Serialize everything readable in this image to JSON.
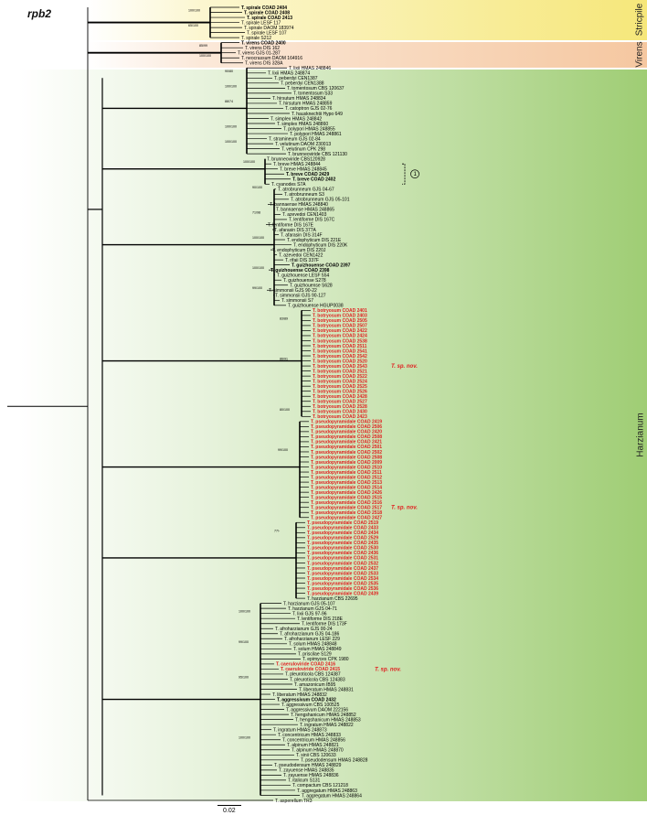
{
  "figure": {
    "gene": "rpb2",
    "scale_label": "0.02",
    "note_marker": "1",
    "colors": {
      "stricpile": "#f6e77a",
      "virens": "#f5c7a0",
      "harzianum": "#9fcd74",
      "highlight": "#e02020",
      "normal": "#000000",
      "branch": "#000000"
    },
    "clades": [
      {
        "name": "Stricpile"
      },
      {
        "name": "Virens"
      },
      {
        "name": "Harzianum"
      }
    ],
    "sp_nov": [
      "T. sp. nov.",
      "T. sp. nov.",
      "T. sp. nov."
    ],
    "support_values": [
      "100/100",
      "65/100",
      "85/99",
      "100/100",
      "90/80",
      "100/100",
      "88/74",
      "100/100",
      "100/100",
      "100/100",
      "90/100",
      "71/98",
      "100/100",
      "100/100",
      "99/100",
      "83/89",
      "86/91",
      "80/100",
      "99/100",
      "77/-",
      "100/100",
      "99/100",
      "95/100",
      "100/100"
    ],
    "tips": [
      {
        "label": "T. spirale COAD 2404",
        "style": "bold",
        "color": "normal"
      },
      {
        "label": "T. spirale COAD 2408",
        "style": "bold",
        "color": "normal"
      },
      {
        "label": "T. spirale COAD 2413",
        "style": "bold",
        "color": "normal"
      },
      {
        "label": "T. spirale LESF 117",
        "style": "normal",
        "color": "normal"
      },
      {
        "label": "T. spirale DAOM 183974",
        "style": "normal",
        "color": "normal"
      },
      {
        "label": "T. spirale LESF 107",
        "style": "normal",
        "color": "normal"
      },
      {
        "label": "T. spirale S212",
        "style": "normal",
        "color": "normal"
      },
      {
        "label": "T. virens COAD 2400",
        "style": "bold",
        "color": "normal"
      },
      {
        "label": "T. virens DIS 162",
        "style": "normal",
        "color": "normal"
      },
      {
        "label": "T. virens GJS 01-287",
        "style": "normal",
        "color": "normal"
      },
      {
        "label": "T. neocrassum DAOM 164916",
        "style": "normal",
        "color": "normal"
      },
      {
        "label": "T. virens DIS 328A",
        "style": "normal",
        "color": "normal"
      },
      {
        "label": "T. lixii HMAS 248846",
        "style": "normal",
        "color": "normal"
      },
      {
        "label": "T. lixii HMAS 248874",
        "style": "normal",
        "color": "normal"
      },
      {
        "label": "T. peberdyi CEN1387",
        "style": "normal",
        "color": "normal"
      },
      {
        "label": "T. peberdyi CEN1388",
        "style": "normal",
        "color": "normal"
      },
      {
        "label": "T. tomentosum CBS 120637",
        "style": "normal",
        "color": "normal"
      },
      {
        "label": "T. tomentosum S33",
        "style": "normal",
        "color": "normal"
      },
      {
        "label": "T. hirsutum HMAS 248834",
        "style": "normal",
        "color": "normal"
      },
      {
        "label": "T. hirsutum HMAS 248859",
        "style": "normal",
        "color": "normal"
      },
      {
        "label": "T. catoptron GJS 02-76",
        "style": "normal",
        "color": "normal"
      },
      {
        "label": "T. hausknechtii Hypo 649",
        "style": "normal",
        "color": "normal"
      },
      {
        "label": "T. simplex HMAS 248842",
        "style": "normal",
        "color": "normal"
      },
      {
        "label": "T. simplex HMAS 248860",
        "style": "normal",
        "color": "normal"
      },
      {
        "label": "T. polypori HMAS 248855",
        "style": "normal",
        "color": "normal"
      },
      {
        "label": "T. polypori HMAS 248861",
        "style": "normal",
        "color": "normal"
      },
      {
        "label": "T. stramineum GJS 02-84",
        "style": "normal",
        "color": "normal"
      },
      {
        "label": "T. velutinum DAOM 230013",
        "style": "normal",
        "color": "normal"
      },
      {
        "label": "T. velutinum CPK 298",
        "style": "normal",
        "color": "normal"
      },
      {
        "label": "T. brunneoviride CBS 121130",
        "style": "normal",
        "color": "normal"
      },
      {
        "label": "T. brunneoviride CBS120928",
        "style": "normal",
        "color": "normal"
      },
      {
        "label": "T. breve HMAS 248844",
        "style": "normal",
        "color": "normal"
      },
      {
        "label": "T. breve HMAS 248845",
        "style": "normal",
        "color": "normal"
      },
      {
        "label": "T. breve COAD 2429",
        "style": "bold",
        "color": "normal"
      },
      {
        "label": "T. breve COAD 2402",
        "style": "bold",
        "color": "normal"
      },
      {
        "label": "T. cyanodes S7A",
        "style": "normal",
        "color": "normal"
      },
      {
        "label": "T. atrobrunneum GJS 04-67",
        "style": "normal",
        "color": "normal"
      },
      {
        "label": "T. atrobrunneum S3",
        "style": "normal",
        "color": "normal"
      },
      {
        "label": "T. atrobrunneum GJS 05-101",
        "style": "normal",
        "color": "normal"
      },
      {
        "label": "T. bannaense HMAS 248840",
        "style": "normal",
        "color": "normal"
      },
      {
        "label": "T. bannaense HMAS 248865",
        "style": "normal",
        "color": "normal"
      },
      {
        "label": "T. azevedoi CEN1403",
        "style": "normal",
        "color": "normal"
      },
      {
        "label": "T. lentiforme DIS 167C",
        "style": "normal",
        "color": "normal"
      },
      {
        "label": "T. lentiforme DIS 167E",
        "style": "normal",
        "color": "normal"
      },
      {
        "label": "T. afarasin DIS 377A",
        "style": "normal",
        "color": "normal"
      },
      {
        "label": "T. afarasin DIS 314F",
        "style": "normal",
        "color": "normal"
      },
      {
        "label": "T. endophyticum DIS 221E",
        "style": "normal",
        "color": "normal"
      },
      {
        "label": "T. endophyticum DIS 220K",
        "style": "normal",
        "color": "normal"
      },
      {
        "label": "T. endophyticum DIS 220J",
        "style": "normal",
        "color": "normal"
      },
      {
        "label": "T. azevedoi CEN1422",
        "style": "normal",
        "color": "normal"
      },
      {
        "label": "T. rifaii DIS 337F",
        "style": "normal",
        "color": "normal"
      },
      {
        "label": "T. guizhouense COAD 2397",
        "style": "bold",
        "color": "normal"
      },
      {
        "label": "T. guizhouense COAD 2398",
        "style": "bold",
        "color": "normal"
      },
      {
        "label": "T. guizhouense LESF 554",
        "style": "normal",
        "color": "normal"
      },
      {
        "label": "T. guizhouense S278",
        "style": "normal",
        "color": "normal"
      },
      {
        "label": "T. guizhouense S628",
        "style": "normal",
        "color": "normal"
      },
      {
        "label": "T. simmonsii GJS 90-22",
        "style": "normal",
        "color": "normal"
      },
      {
        "label": "T. simmonsii GJS 90-127",
        "style": "normal",
        "color": "normal"
      },
      {
        "label": "T. simmonsii S7",
        "style": "normal",
        "color": "normal"
      },
      {
        "label": "T. guizhouense HGUP0038",
        "style": "normal",
        "color": "normal"
      },
      {
        "label": "T. botryosum COAD 2401",
        "style": "bold",
        "color": "highlight"
      },
      {
        "label": "T. botryosum COAD 2403",
        "style": "bold",
        "color": "highlight"
      },
      {
        "label": "T. botryosum COAD 2505",
        "style": "bold",
        "color": "highlight"
      },
      {
        "label": "T. botryosum COAD 2507",
        "style": "bold",
        "color": "highlight"
      },
      {
        "label": "T. botryosum COAD 2422",
        "style": "bold",
        "color": "highlight"
      },
      {
        "label": "T. botryosum COAD 2424",
        "style": "bold",
        "color": "highlight"
      },
      {
        "label": "T. botryosum COAD 2538",
        "style": "bold",
        "color": "highlight"
      },
      {
        "label": "T. botryosum COAD 2511",
        "style": "bold",
        "color": "highlight"
      },
      {
        "label": "T. botryosum COAD 2541",
        "style": "bold",
        "color": "highlight"
      },
      {
        "label": "T. botryosum COAD 2542",
        "style": "bold",
        "color": "highlight"
      },
      {
        "label": "T. botryosum COAD 2520",
        "style": "bold",
        "color": "highlight"
      },
      {
        "label": "T. botryosum COAD 2543",
        "style": "bold",
        "color": "highlight"
      },
      {
        "label": "T. botryosum COAD 2521",
        "style": "bold",
        "color": "highlight"
      },
      {
        "label": "T. botryosum COAD 2522",
        "style": "bold",
        "color": "highlight"
      },
      {
        "label": "T. botryosum COAD 2524",
        "style": "bold",
        "color": "highlight"
      },
      {
        "label": "T. botryosum COAD 2525",
        "style": "bold",
        "color": "highlight"
      },
      {
        "label": "T. botryosum COAD 2526",
        "style": "bold",
        "color": "highlight"
      },
      {
        "label": "T. botryosum COAD 2428",
        "style": "bold",
        "color": "highlight"
      },
      {
        "label": "T. botryosum COAD 2527",
        "style": "bold",
        "color": "highlight"
      },
      {
        "label": "T. botryosum COAD 2528",
        "style": "bold",
        "color": "highlight"
      },
      {
        "label": "T. botryosum COAD 2430",
        "style": "bold",
        "color": "highlight"
      },
      {
        "label": "T. botryosum COAD 2423",
        "style": "bold",
        "color": "highlight"
      },
      {
        "label": "T. pseudopyramidale COAD 2419",
        "style": "bold",
        "color": "highlight"
      },
      {
        "label": "T. pseudopyramidale COAD 2506",
        "style": "bold",
        "color": "highlight"
      },
      {
        "label": "T. pseudopyramidale COAD 2420",
        "style": "bold",
        "color": "highlight"
      },
      {
        "label": "T. pseudopyramidale COAD 2508",
        "style": "bold",
        "color": "highlight"
      },
      {
        "label": "T. pseudopyramidale COAD 2421",
        "style": "bold",
        "color": "highlight"
      },
      {
        "label": "T. pseudopyramidale COAD 2501",
        "style": "bold",
        "color": "highlight"
      },
      {
        "label": "T. pseudopyramidale COAD 2502",
        "style": "bold",
        "color": "highlight"
      },
      {
        "label": "T. pseudopyramidale COAD 2508",
        "style": "bold",
        "color": "highlight"
      },
      {
        "label": "T. pseudopyramidale COAD 2009",
        "style": "bold",
        "color": "highlight"
      },
      {
        "label": "T. pseudopyramidale COAD 2510",
        "style": "bold",
        "color": "highlight"
      },
      {
        "label": "T. pseudopyramidale COAD 2511",
        "style": "bold",
        "color": "highlight"
      },
      {
        "label": "T. pseudopyramidale COAD 2512",
        "style": "bold",
        "color": "highlight"
      },
      {
        "label": "T. pseudopyramidale COAD 2513",
        "style": "bold",
        "color": "highlight"
      },
      {
        "label": "T. pseudopyramidale COAD 2514",
        "style": "bold",
        "color": "highlight"
      },
      {
        "label": "T. pseudopyramidale COAD 2426",
        "style": "bold",
        "color": "highlight"
      },
      {
        "label": "T. pseudopyramidale COAD 2515",
        "style": "bold",
        "color": "highlight"
      },
      {
        "label": "T. pseudopyramidale COAD 2516",
        "style": "bold",
        "color": "highlight"
      },
      {
        "label": "T. pseudopyramidale COAD 2517",
        "style": "bold",
        "color": "highlight"
      },
      {
        "label": "T. pseudopyramidale COAD 2518",
        "style": "bold",
        "color": "highlight"
      },
      {
        "label": "T. pseudopyramidale COAD 2427",
        "style": "bold",
        "color": "highlight"
      },
      {
        "label": "T. pseudopyramidale COAD 2519",
        "style": "bold",
        "color": "highlight"
      },
      {
        "label": "T. pseudopyramidale COAD 2433",
        "style": "bold",
        "color": "highlight"
      },
      {
        "label": "T. pseudopyramidale COAD 2434",
        "style": "bold",
        "color": "highlight"
      },
      {
        "label": "T. pseudopyramidale COAD 2529",
        "style": "bold",
        "color": "highlight"
      },
      {
        "label": "T. pseudopyramidale COAD 2435",
        "style": "bold",
        "color": "highlight"
      },
      {
        "label": "T. pseudopyramidale COAD 2530",
        "style": "bold",
        "color": "highlight"
      },
      {
        "label": "T. pseudopyramidale COAD 2436",
        "style": "bold",
        "color": "highlight"
      },
      {
        "label": "T. pseudopyramidale COAD 2531",
        "style": "bold",
        "color": "highlight"
      },
      {
        "label": "T. pseudopyramidale COAD 2532",
        "style": "bold",
        "color": "highlight"
      },
      {
        "label": "T. pseudopyramidale COAD 2437",
        "style": "bold",
        "color": "highlight"
      },
      {
        "label": "T. pseudopyramidale COAD 2533",
        "style": "bold",
        "color": "highlight"
      },
      {
        "label": "T. pseudopyramidale COAD 2534",
        "style": "bold",
        "color": "highlight"
      },
      {
        "label": "T. pseudopyramidale COAD 2535",
        "style": "bold",
        "color": "highlight"
      },
      {
        "label": "T. pseudopyramidale COAD 2536",
        "style": "bold",
        "color": "highlight"
      },
      {
        "label": "T. pseudopyramidale COAD 2439",
        "style": "bold",
        "color": "highlight"
      },
      {
        "label": "T. harzianum CBS 22695",
        "style": "normal",
        "color": "normal"
      },
      {
        "label": "T. harzianum GJS 05-107",
        "style": "normal",
        "color": "normal"
      },
      {
        "label": "T. harzianum GJS 04-71",
        "style": "normal",
        "color": "normal"
      },
      {
        "label": "T. lixii GJS 97-96",
        "style": "normal",
        "color": "normal"
      },
      {
        "label": "T. lentiforme DIS 218E",
        "style": "normal",
        "color": "normal"
      },
      {
        "label": "T. lentiforme DIS 173F",
        "style": "normal",
        "color": "normal"
      },
      {
        "label": "T. afroharzianum GJS 00-24",
        "style": "normal",
        "color": "normal"
      },
      {
        "label": "T. afroharzianum GJS 04-186",
        "style": "normal",
        "color": "normal"
      },
      {
        "label": "T. afroharzianum LESF 229",
        "style": "normal",
        "color": "normal"
      },
      {
        "label": "T. solum HMAS 248848",
        "style": "normal",
        "color": "normal"
      },
      {
        "label": "T. solum HMAS 248849",
        "style": "normal",
        "color": "normal"
      },
      {
        "label": "T. priscilae S129",
        "style": "normal",
        "color": "normal"
      },
      {
        "label": "T. epimyces CPK 1980",
        "style": "normal",
        "color": "normal"
      },
      {
        "label": "T. caeruloviride COAD 2416",
        "style": "bold",
        "color": "highlight"
      },
      {
        "label": "T. caeruloviride COAD 2415",
        "style": "bold",
        "color": "highlight"
      },
      {
        "label": "T. pleuroticola CBS 124387",
        "style": "normal",
        "color": "normal"
      },
      {
        "label": "T. pleuroticola CBS 124383",
        "style": "normal",
        "color": "normal"
      },
      {
        "label": "T. amazonicum IB95",
        "style": "normal",
        "color": "normal"
      },
      {
        "label": "T. liberatum HMAS 248831",
        "style": "normal",
        "color": "normal"
      },
      {
        "label": "T. liberatum HMAS 248832",
        "style": "normal",
        "color": "normal"
      },
      {
        "label": "T. aggressivum COAD 2432",
        "style": "bold",
        "color": "normal"
      },
      {
        "label": "T. aggressivum CBS 100525",
        "style": "normal",
        "color": "normal"
      },
      {
        "label": "T. aggressivum DAOM 222156",
        "style": "normal",
        "color": "normal"
      },
      {
        "label": "T. hengshanicum HMAS 248852",
        "style": "normal",
        "color": "normal"
      },
      {
        "label": "T. hengshanicum HMAS 248853",
        "style": "normal",
        "color": "normal"
      },
      {
        "label": "T. ingratum HMAS 248822",
        "style": "normal",
        "color": "normal"
      },
      {
        "label": "T. ingratum HMAS 248873",
        "style": "normal",
        "color": "normal"
      },
      {
        "label": "T. concentricum HMAS 248833",
        "style": "normal",
        "color": "normal"
      },
      {
        "label": "T. concentricum HMAS 248856",
        "style": "normal",
        "color": "normal"
      },
      {
        "label": "T. alpinum HMAS 248821",
        "style": "normal",
        "color": "normal"
      },
      {
        "label": "T. alpinum HMAS 248870",
        "style": "normal",
        "color": "normal"
      },
      {
        "label": "T. sinii CBS 120633",
        "style": "normal",
        "color": "normal"
      },
      {
        "label": "T. pseudodensum HMAS 248828",
        "style": "normal",
        "color": "normal"
      },
      {
        "label": "T. pseudodensum HMAS 248829",
        "style": "normal",
        "color": "normal"
      },
      {
        "label": "T. zayuense HMAS 248835",
        "style": "normal",
        "color": "normal"
      },
      {
        "label": "T. zayuense HMAS 248836",
        "style": "normal",
        "color": "normal"
      },
      {
        "label": "T. italicum S131",
        "style": "normal",
        "color": "normal"
      },
      {
        "label": "T. compactum CBS 121218",
        "style": "normal",
        "color": "normal"
      },
      {
        "label": "T. aggregatum HMAS 248863",
        "style": "normal",
        "color": "normal"
      },
      {
        "label": "T. aggregatum HMAS 248864",
        "style": "normal",
        "color": "normal"
      },
      {
        "label": "T. asperellum TR3",
        "style": "normal",
        "color": "normal"
      }
    ]
  }
}
